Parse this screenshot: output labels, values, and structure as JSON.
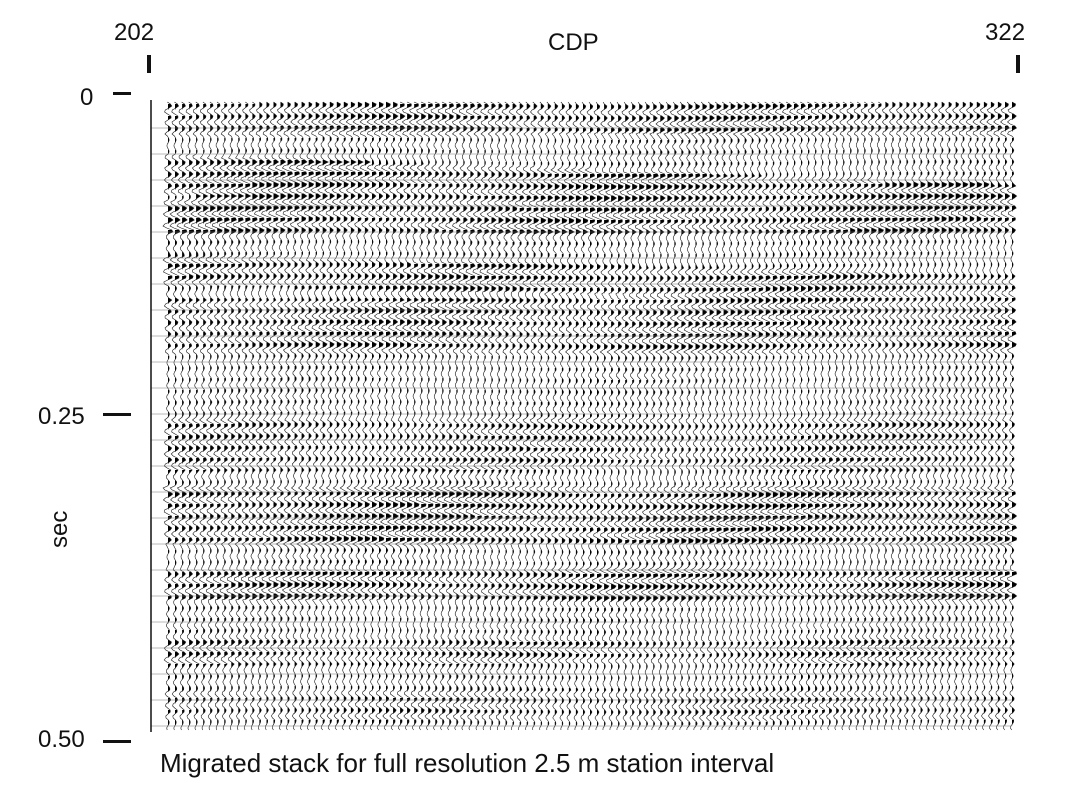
{
  "axis": {
    "x_title": "CDP",
    "x_start": "202",
    "x_end": "322",
    "y_unit": "sec",
    "y_ticks": [
      "0",
      "0.25",
      "0.50"
    ]
  },
  "caption": "Migrated stack for full resolution 2.5 m station interval",
  "colors": {
    "trace_fill": "#000000",
    "trace_line": "#1a1a1a",
    "background": "#ffffff"
  }
}
